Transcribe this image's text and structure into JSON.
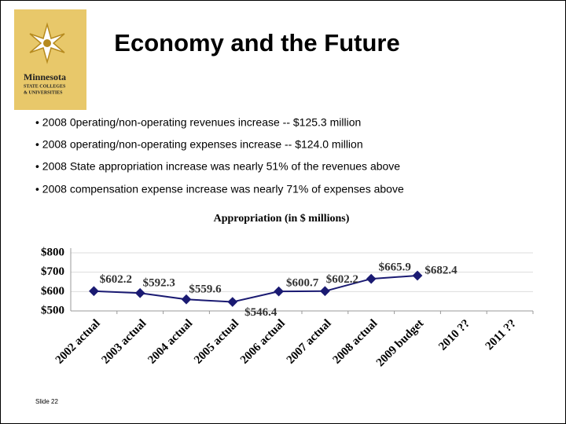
{
  "header": {
    "title": "Economy and the Future",
    "logo": [
      "Minnesota",
      "STATE COLLEGES",
      "& UNIVERSITIES"
    ]
  },
  "bullets": [
    "• 2008 0perating/non-operating revenues increase -- $125.3 million",
    "• 2008 operating/non-operating expenses increase -- $124.0 million",
    "• 2008 State appropriation increase was nearly 51% of the revenues above",
    "• 2008 compensation expense increase was nearly 71% of expenses above"
  ],
  "chart_data": {
    "type": "line",
    "title": "Appropriation (in $ millions)",
    "categories": [
      "2002 actual",
      "2003 actual",
      "2004 actual",
      "2005 actual",
      "2006 actual",
      "2007 actual",
      "2008 actual",
      "2009 budget",
      "2010 ??",
      "2011 ??"
    ],
    "values": [
      602.2,
      592.3,
      559.6,
      546.4,
      600.7,
      602.2,
      665.9,
      682.4,
      null,
      null
    ],
    "value_labels": [
      "$602.2",
      "$592.3",
      "$559.6",
      "$546.4",
      "$600.7",
      "$602.2",
      "$665.9",
      "$682.4",
      null,
      null
    ],
    "color": "#1a1a72",
    "ylim": [
      500,
      800
    ],
    "yticks": [
      {
        "value": 500,
        "label": "$500"
      },
      {
        "value": 600,
        "label": "$600"
      },
      {
        "value": 700,
        "label": "$700"
      },
      {
        "value": 800,
        "label": "$800"
      }
    ],
    "grid": true
  },
  "footer": "Slide 22"
}
